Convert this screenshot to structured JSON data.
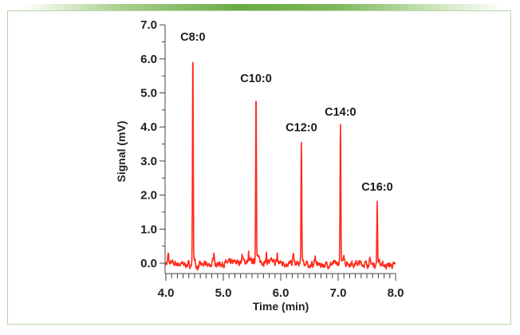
{
  "chart_data": {
    "type": "line",
    "title": "",
    "xlabel": "Time (min)",
    "ylabel": "Signal (mV)",
    "xlim": [
      4.0,
      8.0
    ],
    "ylim": [
      0.0,
      7.0
    ],
    "xticks": [
      "4.0",
      "5.0",
      "6.0",
      "7.0",
      "8.0"
    ],
    "yticks": [
      "0.0",
      "1.0",
      "2.0",
      "3.0",
      "4.0",
      "5.0",
      "6.0",
      "7.0"
    ],
    "grid": false,
    "line_color": "#ff2a1a",
    "peaks": [
      {
        "label": "C8:0",
        "time": 4.47,
        "signal": 6.25
      },
      {
        "label": "C10:0",
        "time": 5.57,
        "signal": 5.03
      },
      {
        "label": "C12:0",
        "time": 6.36,
        "signal": 3.6
      },
      {
        "label": "C14:0",
        "time": 7.04,
        "signal": 4.05
      },
      {
        "label": "C16:0",
        "time": 7.68,
        "signal": 1.85
      }
    ]
  }
}
